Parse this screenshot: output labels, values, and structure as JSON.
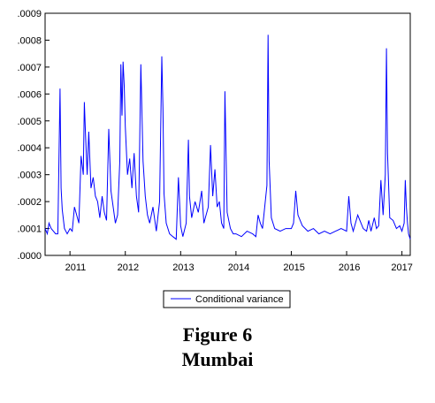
{
  "chart_data": {
    "type": "line",
    "x_range": [
      2010.55,
      2017.15
    ],
    "ylim": [
      0,
      0.0009
    ],
    "y_ticks": [
      {
        "value": 0.0,
        "label": ".0000"
      },
      {
        "value": 0.0001,
        "label": ".0001"
      },
      {
        "value": 0.0002,
        "label": ".0002"
      },
      {
        "value": 0.0003,
        "label": ".0003"
      },
      {
        "value": 0.0004,
        "label": ".0004"
      },
      {
        "value": 0.0005,
        "label": ".0005"
      },
      {
        "value": 0.0006,
        "label": ".0006"
      },
      {
        "value": 0.0007,
        "label": ".0007"
      },
      {
        "value": 0.0008,
        "label": ".0008"
      },
      {
        "value": 0.0009,
        "label": ".0009"
      }
    ],
    "x_ticks": [
      {
        "value": 2011.1,
        "label": "2011"
      },
      {
        "value": 2012.05,
        "label": "2012"
      },
      {
        "value": 2013.05,
        "label": "2013"
      },
      {
        "value": 2014.05,
        "label": "2014"
      },
      {
        "value": 2015.05,
        "label": "2015"
      },
      {
        "value": 2016.05,
        "label": "2016"
      },
      {
        "value": 2017.0,
        "label": "2017"
      }
    ],
    "grid": false,
    "legend_position": "bottom-center",
    "series": [
      {
        "name": "Conditional variance",
        "color": "#0000ff",
        "x": [
          2010.55,
          2010.59,
          2010.62,
          2010.66,
          2010.7,
          2010.74,
          2010.78,
          2010.82,
          2010.84,
          2010.86,
          2010.9,
          2010.95,
          2011.0,
          2011.04,
          2011.08,
          2011.12,
          2011.16,
          2011.2,
          2011.24,
          2011.26,
          2011.28,
          2011.31,
          2011.34,
          2011.38,
          2011.42,
          2011.46,
          2011.5,
          2011.54,
          2011.58,
          2011.62,
          2011.66,
          2011.7,
          2011.74,
          2011.78,
          2011.82,
          2011.86,
          2011.9,
          2011.92,
          2011.94,
          2011.96,
          2011.98,
          2012.0,
          2012.04,
          2012.08,
          2012.12,
          2012.16,
          2012.2,
          2012.24,
          2012.28,
          2012.32,
          2012.36,
          2012.4,
          2012.44,
          2012.5,
          2012.56,
          2012.62,
          2012.66,
          2012.68,
          2012.7,
          2012.74,
          2012.8,
          2012.86,
          2012.92,
          2012.96,
          2012.98,
          2013.0,
          2013.04,
          2013.1,
          2013.14,
          2013.16,
          2013.2,
          2013.26,
          2013.32,
          2013.38,
          2013.42,
          2013.46,
          2013.5,
          2013.54,
          2013.58,
          2013.62,
          2013.66,
          2013.7,
          2013.74,
          2013.78,
          2013.8,
          2013.84,
          2013.9,
          2013.95,
          2014.0,
          2014.1,
          2014.2,
          2014.3,
          2014.36,
          2014.4,
          2014.44,
          2014.48,
          2014.52,
          2014.56,
          2014.58,
          2014.6,
          2014.64,
          2014.7,
          2014.8,
          2014.9,
          2015.0,
          2015.04,
          2015.08,
          2015.12,
          2015.2,
          2015.3,
          2015.4,
          2015.5,
          2015.6,
          2015.7,
          2015.8,
          2015.9,
          2016.0,
          2016.04,
          2016.08,
          2016.12,
          2016.2,
          2016.3,
          2016.36,
          2016.4,
          2016.44,
          2016.5,
          2016.54,
          2016.58,
          2016.62,
          2016.66,
          2016.7,
          2016.72,
          2016.74,
          2016.78,
          2016.84,
          2016.9,
          2016.96,
          2017.0,
          2017.04,
          2017.06,
          2017.08,
          2017.1,
          2017.12,
          2017.15
        ],
        "y": [
          0.0001,
          8e-05,
          0.00012,
          0.0001,
          9e-05,
          8e-05,
          8e-05,
          0.00062,
          0.00025,
          0.00017,
          0.0001,
          8e-05,
          0.0001,
          9e-05,
          0.00018,
          0.00015,
          0.00012,
          0.00037,
          0.0003,
          0.00057,
          0.00045,
          0.0003,
          0.00046,
          0.00025,
          0.00029,
          0.00022,
          0.0002,
          0.00014,
          0.00022,
          0.00016,
          0.00013,
          0.00047,
          0.00024,
          0.00018,
          0.00012,
          0.00015,
          0.00035,
          0.00071,
          0.00052,
          0.00072,
          0.00063,
          0.00048,
          0.0003,
          0.00036,
          0.00025,
          0.00038,
          0.00022,
          0.00016,
          0.00071,
          0.00035,
          0.00022,
          0.00015,
          0.00012,
          0.00018,
          9e-05,
          0.0002,
          0.00074,
          0.00055,
          0.00023,
          0.00012,
          8e-05,
          7e-05,
          6e-05,
          0.00029,
          0.0002,
          0.00011,
          7e-05,
          0.00012,
          0.00043,
          0.00022,
          0.00014,
          0.0002,
          0.00016,
          0.00024,
          0.00012,
          0.00015,
          0.00018,
          0.00041,
          0.00022,
          0.00032,
          0.00018,
          0.0002,
          0.00012,
          0.0001,
          0.00061,
          0.00016,
          0.0001,
          8e-05,
          8e-05,
          7e-05,
          9e-05,
          8e-05,
          7e-05,
          0.00015,
          0.00012,
          0.0001,
          0.00018,
          0.00026,
          0.00082,
          0.00035,
          0.00014,
          0.0001,
          9e-05,
          0.0001,
          0.0001,
          0.00012,
          0.00024,
          0.00015,
          0.00011,
          9e-05,
          0.0001,
          8e-05,
          9e-05,
          8e-05,
          9e-05,
          0.0001,
          9e-05,
          0.00022,
          0.00012,
          9e-05,
          0.00015,
          0.0001,
          9e-05,
          0.00013,
          9e-05,
          0.00014,
          0.0001,
          0.00011,
          0.00028,
          0.00015,
          0.0003,
          0.00077,
          0.00038,
          0.00014,
          0.00013,
          0.0001,
          0.00011,
          9e-05,
          0.00012,
          0.00028,
          0.00018,
          0.00012,
          8e-05,
          6e-05
        ]
      }
    ]
  },
  "caption": {
    "line1": "Figure 6",
    "line2": "Mumbai"
  }
}
